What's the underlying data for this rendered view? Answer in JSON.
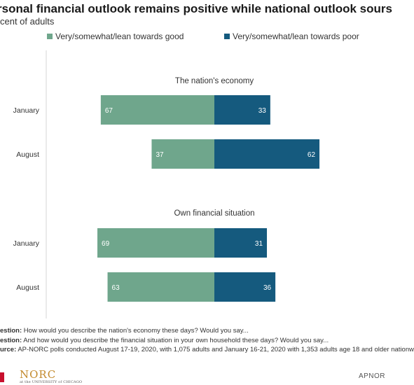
{
  "header": {
    "title": "rsonal financial outlook remains positive while national outlook sours",
    "subtitle": "cent of adults"
  },
  "legend": [
    {
      "label": "Very/somewhat/lean towards good",
      "color": "#6fa68c"
    },
    {
      "label": "Very/somewhat/lean towards poor",
      "color": "#155a7e"
    }
  ],
  "chart_data": {
    "type": "bar",
    "orientation": "horizontal-diverging",
    "groups": [
      {
        "title": "The nation's economy",
        "categories": [
          "January",
          "August"
        ],
        "series": [
          {
            "name": "Very/somewhat/lean towards good",
            "values": [
              67,
              37
            ]
          },
          {
            "name": "Very/somewhat/lean towards poor",
            "values": [
              33,
              62
            ]
          }
        ]
      },
      {
        "title": "Own financial situation",
        "categories": [
          "January",
          "August"
        ],
        "series": [
          {
            "name": "Very/somewhat/lean towards good",
            "values": [
              69,
              63
            ]
          },
          {
            "name": "Very/somewhat/lean towards poor",
            "values": [
              31,
              36
            ]
          }
        ]
      }
    ],
    "xlim": [
      -100,
      100
    ],
    "grid": false,
    "legend_position": "top",
    "colors": {
      "good": "#6fa68c",
      "poor": "#155a7e"
    }
  },
  "notes": [
    {
      "prefix": "estion:",
      "text": " How would you describe the nation's economy these days? Would you say..."
    },
    {
      "prefix": "estion:",
      "text": " And how would you describe the financial situation in your own household these days? Would you say..."
    },
    {
      "prefix": "urce:",
      "text": " AP-NORC polls conducted August 17-19, 2020, with 1,075 adults and January 16-21, 2020 with  1,353 adults age 18 and older nationw"
    }
  ],
  "footer": {
    "norc_logo": "NORC",
    "norc_sub": "at the UNIVERSITY of CHICAGO",
    "credit": "APNOR"
  }
}
